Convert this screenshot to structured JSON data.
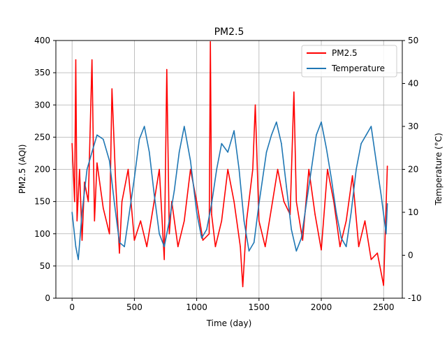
{
  "chart_data": {
    "type": "line",
    "title": "PM2.5",
    "xlabel": "Time (day)",
    "ylabel_left": "PM2.5 (AQI)",
    "ylabel_right": "Temperature (°C)",
    "xlim": [
      -130,
      2650
    ],
    "ylim_left": [
      0,
      400
    ],
    "ylim_right": [
      -10,
      50
    ],
    "x_ticks": [
      0,
      500,
      1000,
      1500,
      2000,
      2500
    ],
    "y_ticks_left": [
      0,
      50,
      100,
      150,
      200,
      250,
      300,
      350,
      400
    ],
    "y_ticks_right": [
      -10,
      0,
      10,
      20,
      30,
      40,
      50
    ],
    "grid": true,
    "legend_position": "top-right",
    "series": [
      {
        "name": "PM2.5",
        "axis": "left",
        "color": "#ff0000",
        "x": [
          0,
          20,
          30,
          40,
          60,
          80,
          100,
          130,
          160,
          180,
          200,
          250,
          300,
          320,
          350,
          380,
          400,
          450,
          500,
          550,
          600,
          650,
          700,
          740,
          760,
          780,
          800,
          850,
          900,
          950,
          1000,
          1050,
          1100,
          1110,
          1120,
          1150,
          1200,
          1250,
          1300,
          1350,
          1370,
          1400,
          1450,
          1470,
          1500,
          1550,
          1600,
          1650,
          1700,
          1750,
          1780,
          1800,
          1850,
          1900,
          1950,
          2000,
          2050,
          2100,
          2150,
          2200,
          2250,
          2300,
          2350,
          2400,
          2450,
          2500,
          2530
        ],
        "values": [
          240,
          150,
          370,
          120,
          200,
          90,
          180,
          150,
          370,
          120,
          210,
          140,
          100,
          325,
          180,
          70,
          150,
          200,
          90,
          120,
          80,
          140,
          200,
          60,
          355,
          100,
          150,
          80,
          120,
          200,
          150,
          90,
          100,
          398,
          130,
          80,
          120,
          200,
          150,
          80,
          18,
          120,
          200,
          300,
          120,
          80,
          140,
          200,
          150,
          130,
          320,
          150,
          90,
          200,
          130,
          75,
          200,
          150,
          80,
          120,
          190,
          80,
          120,
          60,
          70,
          20,
          205
        ]
      },
      {
        "name": "Temperature",
        "axis": "right",
        "color": "#1f77b4",
        "x": [
          0,
          30,
          50,
          80,
          120,
          160,
          200,
          250,
          300,
          340,
          380,
          420,
          460,
          500,
          540,
          580,
          620,
          660,
          700,
          740,
          780,
          820,
          860,
          900,
          950,
          1000,
          1040,
          1080,
          1120,
          1160,
          1200,
          1250,
          1300,
          1340,
          1380,
          1420,
          1460,
          1500,
          1560,
          1600,
          1640,
          1680,
          1720,
          1760,
          1800,
          1840,
          1880,
          1920,
          1960,
          2000,
          2040,
          2080,
          2120,
          2160,
          2200,
          2240,
          2280,
          2320,
          2360,
          2400,
          2440,
          2480,
          2520,
          2530
        ],
        "values": [
          10,
          2,
          -1,
          10,
          20,
          24,
          28,
          27,
          22,
          12,
          3,
          2,
          10,
          18,
          27,
          30,
          24,
          14,
          5,
          2,
          8,
          15,
          24,
          30,
          22,
          10,
          4,
          6,
          12,
          20,
          26,
          24,
          29,
          20,
          8,
          1,
          3,
          12,
          24,
          28,
          31,
          26,
          16,
          6,
          1,
          4,
          12,
          20,
          28,
          31,
          25,
          18,
          10,
          4,
          2,
          10,
          20,
          26,
          28,
          30,
          22,
          14,
          5,
          12
        ]
      }
    ]
  }
}
